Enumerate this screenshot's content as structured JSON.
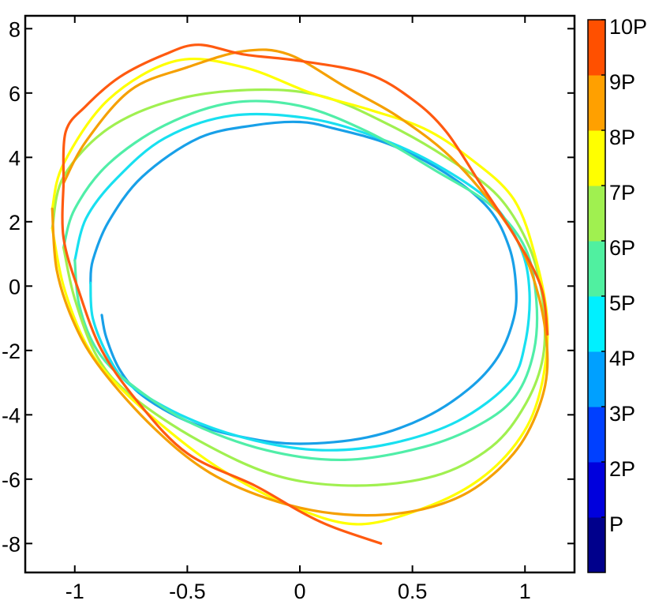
{
  "chart_data": {
    "type": "line",
    "title": "",
    "xlabel": "",
    "ylabel": "",
    "xlim": [
      -1.22,
      1.22
    ],
    "ylim": [
      -8.9,
      8.4
    ],
    "x_ticks": [
      -1,
      -0.5,
      0,
      0.5,
      1
    ],
    "x_tick_labels": [
      "-1",
      "-0.5",
      "0",
      "0.5",
      "1"
    ],
    "y_ticks": [
      8,
      6,
      4,
      2,
      0,
      -2,
      -4,
      -6,
      -8
    ],
    "y_tick_labels": [
      "8",
      "6",
      "4",
      "2",
      "0",
      "-2",
      "-4",
      "-6",
      "-8"
    ],
    "grid": false,
    "colorbar": {
      "labels": [
        "P",
        "2P",
        "3P",
        "4P",
        "5P",
        "6P",
        "7P",
        "8P",
        "9P",
        "10P"
      ],
      "colors": [
        "#00008c",
        "#0000dd",
        "#0040ff",
        "#00a0ff",
        "#00f0ff",
        "#50f0a0",
        "#a0f050",
        "#ffff00",
        "#ffa000",
        "#ff5000"
      ]
    },
    "series": [
      {
        "color": "#18a0e8",
        "points": [
          [
            -0.88,
            -0.9
          ],
          [
            -0.86,
            -1.6
          ],
          [
            -0.8,
            -2.6
          ],
          [
            -0.7,
            -3.4
          ],
          [
            -0.5,
            -4.2
          ],
          [
            -0.25,
            -4.7
          ],
          [
            0,
            -4.9
          ],
          [
            0.3,
            -4.7
          ],
          [
            0.55,
            -4.1
          ],
          [
            0.75,
            -3.2
          ],
          [
            0.88,
            -2.2
          ],
          [
            0.95,
            -1.0
          ],
          [
            0.96,
            0.0
          ],
          [
            0.93,
            1.2
          ],
          [
            0.84,
            2.4
          ],
          [
            0.65,
            3.5
          ],
          [
            0.4,
            4.4
          ],
          [
            0.15,
            4.9
          ],
          [
            0,
            5.1
          ],
          [
            -0.2,
            5.0
          ],
          [
            -0.45,
            4.6
          ],
          [
            -0.7,
            3.4
          ],
          [
            -0.85,
            2.0
          ],
          [
            -0.92,
            0.8
          ],
          [
            -0.93,
            0.1
          ]
        ]
      },
      {
        "color": "#18e0f0",
        "points": [
          [
            -0.93,
            0.1
          ],
          [
            -0.92,
            -1.0
          ],
          [
            -0.85,
            -2.2
          ],
          [
            -0.75,
            -3.1
          ],
          [
            -0.5,
            -4.1
          ],
          [
            -0.2,
            -4.8
          ],
          [
            0.1,
            -5.1
          ],
          [
            0.4,
            -4.9
          ],
          [
            0.7,
            -4.2
          ],
          [
            0.93,
            -3.0
          ],
          [
            1.0,
            -1.8
          ],
          [
            1.02,
            -0.2
          ],
          [
            0.98,
            1.2
          ],
          [
            0.85,
            2.6
          ],
          [
            0.6,
            3.8
          ],
          [
            0.35,
            4.6
          ],
          [
            0.05,
            5.2
          ],
          [
            -0.3,
            5.3
          ],
          [
            -0.6,
            4.6
          ],
          [
            -0.82,
            3.3
          ],
          [
            -0.95,
            2.1
          ],
          [
            -1.0,
            0.8
          ]
        ]
      },
      {
        "color": "#50eea8",
        "points": [
          [
            -1.0,
            0.8
          ],
          [
            -0.98,
            -0.6
          ],
          [
            -0.9,
            -2.0
          ],
          [
            -0.76,
            -3.0
          ],
          [
            -0.5,
            -4.2
          ],
          [
            -0.15,
            -5.1
          ],
          [
            0.2,
            -5.4
          ],
          [
            0.55,
            -5.0
          ],
          [
            0.8,
            -4.3
          ],
          [
            0.96,
            -3.4
          ],
          [
            1.04,
            -2.0
          ],
          [
            1.05,
            -0.4
          ],
          [
            1.0,
            1.2
          ],
          [
            0.85,
            2.5
          ],
          [
            0.6,
            3.6
          ],
          [
            0.3,
            4.8
          ],
          [
            0.0,
            5.6
          ],
          [
            -0.3,
            5.7
          ],
          [
            -0.6,
            5.0
          ],
          [
            -0.85,
            3.8
          ],
          [
            -1.0,
            2.4
          ],
          [
            -1.05,
            1.2
          ]
        ]
      },
      {
        "color": "#a0f050",
        "points": [
          [
            -1.05,
            1.2
          ],
          [
            -1.0,
            -0.4
          ],
          [
            -0.9,
            -2.2
          ],
          [
            -0.75,
            -3.4
          ],
          [
            -0.45,
            -4.8
          ],
          [
            -0.1,
            -5.9
          ],
          [
            0.25,
            -6.2
          ],
          [
            0.6,
            -5.9
          ],
          [
            0.85,
            -5.0
          ],
          [
            1.0,
            -3.7
          ],
          [
            1.08,
            -2.2
          ],
          [
            1.08,
            -0.5
          ],
          [
            1.02,
            1.2
          ],
          [
            0.88,
            2.8
          ],
          [
            0.65,
            4.0
          ],
          [
            0.4,
            5.0
          ],
          [
            0.1,
            5.9
          ],
          [
            -0.2,
            6.1
          ],
          [
            -0.55,
            5.8
          ],
          [
            -0.85,
            4.9
          ],
          [
            -1.05,
            3.4
          ],
          [
            -1.1,
            1.8
          ]
        ]
      },
      {
        "color": "#ffff00",
        "points": [
          [
            -1.1,
            1.8
          ],
          [
            -1.05,
            0.0
          ],
          [
            -0.95,
            -1.8
          ],
          [
            -0.82,
            -3.0
          ],
          [
            -0.6,
            -4.4
          ],
          [
            -0.35,
            -5.7
          ],
          [
            -0.05,
            -6.8
          ],
          [
            0.25,
            -7.4
          ],
          [
            0.55,
            -6.9
          ],
          [
            0.8,
            -6.0
          ],
          [
            0.98,
            -4.7
          ],
          [
            1.07,
            -3.2
          ],
          [
            1.1,
            -1.2
          ],
          [
            1.05,
            0.8
          ],
          [
            0.95,
            2.7
          ],
          [
            0.75,
            4.0
          ],
          [
            0.55,
            4.9
          ],
          [
            0.3,
            5.5
          ],
          [
            0.05,
            6.0
          ],
          [
            -0.25,
            6.8
          ],
          [
            -0.55,
            7.0
          ],
          [
            -0.85,
            5.8
          ],
          [
            -1.05,
            3.8
          ],
          [
            -1.1,
            2.4
          ]
        ]
      },
      {
        "color": "#f5a000",
        "points": [
          [
            -1.1,
            2.4
          ],
          [
            -1.08,
            0.5
          ],
          [
            -1.0,
            -1.2
          ],
          [
            -0.88,
            -2.6
          ],
          [
            -0.65,
            -4.4
          ],
          [
            -0.4,
            -5.8
          ],
          [
            -0.1,
            -6.7
          ],
          [
            0.2,
            -7.1
          ],
          [
            0.5,
            -7.0
          ],
          [
            0.75,
            -6.4
          ],
          [
            0.95,
            -5.2
          ],
          [
            1.06,
            -3.8
          ],
          [
            1.1,
            -2.3
          ],
          [
            1.06,
            -0.3
          ],
          [
            0.95,
            1.6
          ],
          [
            0.7,
            3.8
          ],
          [
            0.45,
            5.2
          ],
          [
            0.2,
            6.2
          ],
          [
            -0.05,
            7.2
          ],
          [
            -0.25,
            7.3
          ],
          [
            -0.5,
            6.8
          ],
          [
            -0.75,
            6.1
          ],
          [
            -0.95,
            4.5
          ],
          [
            -1.05,
            3.2
          ]
        ]
      },
      {
        "color": "#ff5a10",
        "points": [
          [
            -1.05,
            3.2
          ],
          [
            -1.05,
            1.5
          ],
          [
            -0.98,
            -0.2
          ],
          [
            -0.88,
            -2.0
          ],
          [
            -0.72,
            -3.6
          ],
          [
            -0.5,
            -5.2
          ],
          [
            -0.2,
            -6.2
          ],
          [
            0.0,
            -7.0
          ],
          [
            0.15,
            -7.5
          ],
          [
            0.36,
            -8.0
          ]
        ]
      },
      {
        "color": "#ff5a10",
        "points": [
          [
            -1.05,
            3.2
          ],
          [
            -1.04,
            4.8
          ],
          [
            -0.95,
            5.6
          ],
          [
            -0.8,
            6.5
          ],
          [
            -0.6,
            7.2
          ],
          [
            -0.45,
            7.5
          ],
          [
            -0.25,
            7.2
          ],
          [
            0.0,
            7.0
          ],
          [
            0.3,
            6.6
          ],
          [
            0.5,
            5.8
          ],
          [
            0.65,
            4.8
          ],
          [
            0.8,
            3.2
          ],
          [
            0.95,
            1.6
          ],
          [
            1.07,
            0.0
          ],
          [
            1.1,
            -1.5
          ]
        ]
      }
    ]
  }
}
